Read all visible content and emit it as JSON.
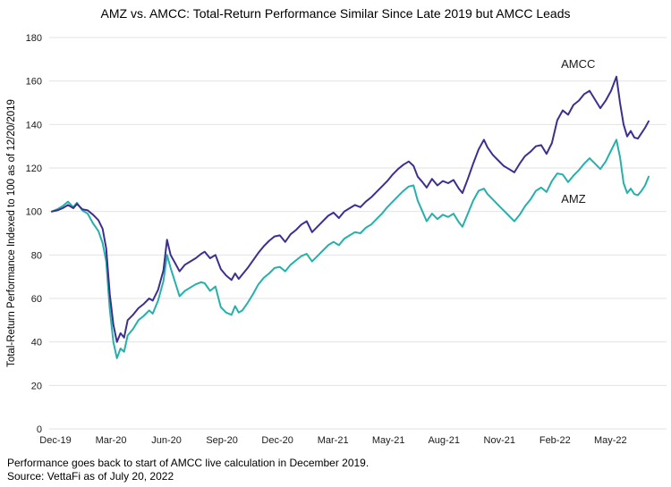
{
  "title": "AMZ vs. AMCC: Total-Return Performance Similar Since Late 2019 but AMCC Leads",
  "y_axis_title": "Total-Return Performance Indexed to 100 as of 12/20/2019",
  "footnotes": {
    "line1": "Performance goes back to start of AMCC live calculation in December 2019.",
    "line2": "Source: VettaFi as of July 20, 2022"
  },
  "colors": {
    "amcc": "#3D2F8F",
    "amz": "#26B0AC",
    "gridline": "#E2E2E2",
    "text": "#1A1A1A"
  },
  "chart_data": {
    "type": "line",
    "title": "AMZ vs. AMCC: Total-Return Performance Similar Since Late 2019 but AMCC Leads",
    "xlabel": "",
    "ylabel": "Total-Return Performance Indexed to 100 as of 12/20/2019",
    "ylim": [
      0,
      180
    ],
    "y_ticks": [
      0,
      20,
      40,
      60,
      80,
      100,
      120,
      140,
      160,
      180
    ],
    "grid": "horizontal",
    "legend": "inline-labels",
    "x_tick_labels": [
      "Dec-19",
      "Mar-20",
      "Jun-20",
      "Sep-20",
      "Dec-20",
      "Mar-21",
      "May-21",
      "Aug-21",
      "Nov-21",
      "Feb-22",
      "May-22"
    ],
    "x_tick_pos_pct": [
      0.6,
      9.9,
      19.2,
      28.5,
      37.8,
      47.1,
      56.4,
      65.7,
      75.0,
      84.3,
      93.6
    ],
    "x_pct": [
      0,
      0.9,
      1.8,
      2.7,
      3.6,
      4.2,
      5.1,
      6,
      6.9,
      7.8,
      8.5,
      9.1,
      9.7,
      10.3,
      10.9,
      11.5,
      12.1,
      12.7,
      13.6,
      14.5,
      15.4,
      16.3,
      16.9,
      17.8,
      18.7,
      19.3,
      19.9,
      20.7,
      21.4,
      22.3,
      23.2,
      24.1,
      25,
      25.6,
      26.5,
      27.4,
      28.3,
      29.2,
      30.1,
      30.7,
      31.3,
      31.9,
      32.8,
      33.7,
      34.6,
      35.5,
      36.4,
      37.3,
      38.2,
      39.1,
      40,
      40.9,
      41.8,
      42.7,
      43.6,
      44.5,
      45.4,
      46.3,
      47.2,
      48.1,
      49,
      49.9,
      50.8,
      51.7,
      52.6,
      53.5,
      54.4,
      55.3,
      56.2,
      57.1,
      58,
      58.9,
      59.8,
      60.6,
      61.3,
      62.1,
      62.8,
      63.7,
      64.6,
      65.5,
      66.4,
      67.3,
      68.2,
      68.8,
      69.7,
      70.6,
      71.5,
      72.4,
      73,
      73.9,
      74.8,
      75.7,
      76.6,
      77.5,
      78.4,
      79.3,
      80.2,
      81.1,
      82,
      82.9,
      83.8,
      84.7,
      85.6,
      86.5,
      87.4,
      88.3,
      89.2,
      90.1,
      91,
      91.9,
      92.8,
      93.7,
      94.6,
      95.2,
      95.8,
      96.4,
      97,
      97.6,
      98.2,
      98.8,
      99.4,
      100
    ],
    "series": [
      {
        "name": "AMCC",
        "color": "#3D2F8F",
        "values": [
          100,
          100.5,
          101.5,
          103,
          101.5,
          103.5,
          101,
          100.5,
          98.5,
          96,
          92,
          83,
          62,
          48,
          40,
          44,
          42,
          50,
          52.5,
          55.5,
          57.5,
          60,
          59,
          64,
          73,
          87,
          80,
          76,
          72.5,
          75.5,
          77,
          78.5,
          80.5,
          81.5,
          78.5,
          80,
          73.5,
          70.5,
          68.5,
          71.5,
          69,
          71,
          74,
          77.5,
          81,
          84,
          86.5,
          88.5,
          89,
          86,
          89.5,
          91.5,
          94,
          95.5,
          90.5,
          93,
          95.5,
          98,
          99.5,
          97,
          100,
          101.5,
          103,
          102,
          104.5,
          106.5,
          109,
          111.5,
          114,
          117,
          119.5,
          121.5,
          123,
          121,
          116,
          113.5,
          111,
          115,
          112,
          114,
          113,
          114.5,
          110.5,
          108.5,
          115,
          122,
          128.5,
          133,
          129.5,
          126,
          123.5,
          121,
          119.5,
          118,
          122,
          125.5,
          127.5,
          130,
          130.5,
          126.5,
          131.5,
          142,
          146.5,
          144.5,
          149,
          151,
          154,
          155.5,
          151.5,
          147.5,
          151,
          155.5,
          162,
          150,
          140,
          134.5,
          137,
          134,
          133.5,
          136,
          138.5,
          141.5
        ]
      },
      {
        "name": "AMZ",
        "color": "#26B0AC",
        "values": [
          100,
          101,
          102.5,
          104.5,
          102,
          104,
          100.5,
          99,
          94.5,
          91,
          85.5,
          77,
          55,
          40,
          32.5,
          37,
          35.5,
          43,
          46,
          50,
          52,
          54.5,
          53,
          59,
          68,
          80,
          74,
          67,
          61,
          63.5,
          65,
          66.5,
          67.5,
          67,
          63.5,
          65.5,
          56,
          53.5,
          52.5,
          56.5,
          53.5,
          54.5,
          58,
          62,
          66.5,
          69.5,
          71.5,
          74,
          74.5,
          72.5,
          75.5,
          77.5,
          79.5,
          80.5,
          77,
          79.5,
          82,
          84.5,
          86,
          84.5,
          87.5,
          89,
          90.5,
          90,
          92.5,
          94,
          96.5,
          99,
          102,
          104.5,
          107,
          109.5,
          111.5,
          112,
          105,
          100,
          95.5,
          99,
          96.5,
          98.5,
          97.5,
          99,
          95,
          93,
          99,
          105,
          109.5,
          110.5,
          108,
          105.5,
          103,
          100.5,
          98,
          95.5,
          98.5,
          102.5,
          105.5,
          109.5,
          111,
          109,
          114,
          117.5,
          117,
          113.5,
          116.5,
          119,
          122,
          124.5,
          122,
          119.5,
          123,
          128,
          133,
          125,
          113,
          108.5,
          110.5,
          108,
          107.5,
          109.5,
          112,
          116
        ]
      }
    ],
    "annotations": [
      {
        "text": "AMCC",
        "x_pct": 88.2,
        "y": 166
      },
      {
        "text": "AMZ",
        "x_pct": 87.4,
        "y": 104
      }
    ]
  }
}
